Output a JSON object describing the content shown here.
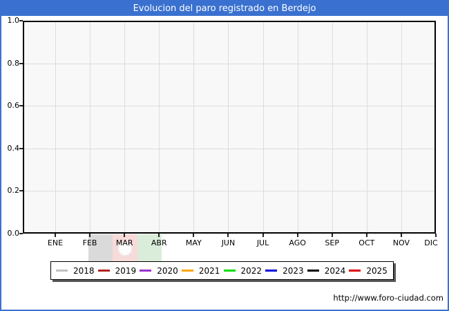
{
  "title": "Evolucion del paro registrado en Berdejo",
  "title_bar_color": "#3a71d0",
  "footer_url": "http://www.foro-ciudad.com",
  "chart_data": {
    "type": "line",
    "title": "Evolucion del paro registrado en Berdejo",
    "categories": [
      "ENE",
      "FEB",
      "MAR",
      "ABR",
      "MAY",
      "JUN",
      "JUL",
      "AGO",
      "SEP",
      "OCT",
      "NOV",
      "DIC"
    ],
    "y_ticks": [
      "0.0",
      "0.2",
      "0.4",
      "0.6",
      "0.8",
      "1.0"
    ],
    "ylim": [
      0.0,
      1.0
    ],
    "grid": true,
    "legend_position": "bottom",
    "series": [
      {
        "name": "2018",
        "color": "#c0c0c0",
        "values": []
      },
      {
        "name": "2019",
        "color": "#b22222",
        "values": []
      },
      {
        "name": "2020",
        "color": "#9932cc",
        "values": []
      },
      {
        "name": "2021",
        "color": "#ffa500",
        "values": []
      },
      {
        "name": "2022",
        "color": "#00dd00",
        "values": []
      },
      {
        "name": "2023",
        "color": "#0000dd",
        "values": []
      },
      {
        "name": "2024",
        "color": "#000000",
        "values": []
      },
      {
        "name": "2025",
        "color": "#dd0000",
        "values": []
      }
    ],
    "note": "Plot area is empty - no data lines are drawn for any series"
  },
  "watermark": {
    "stripe_colors": [
      "#000000",
      "#cc0000",
      "#008800"
    ],
    "opacity": 0.14
  }
}
